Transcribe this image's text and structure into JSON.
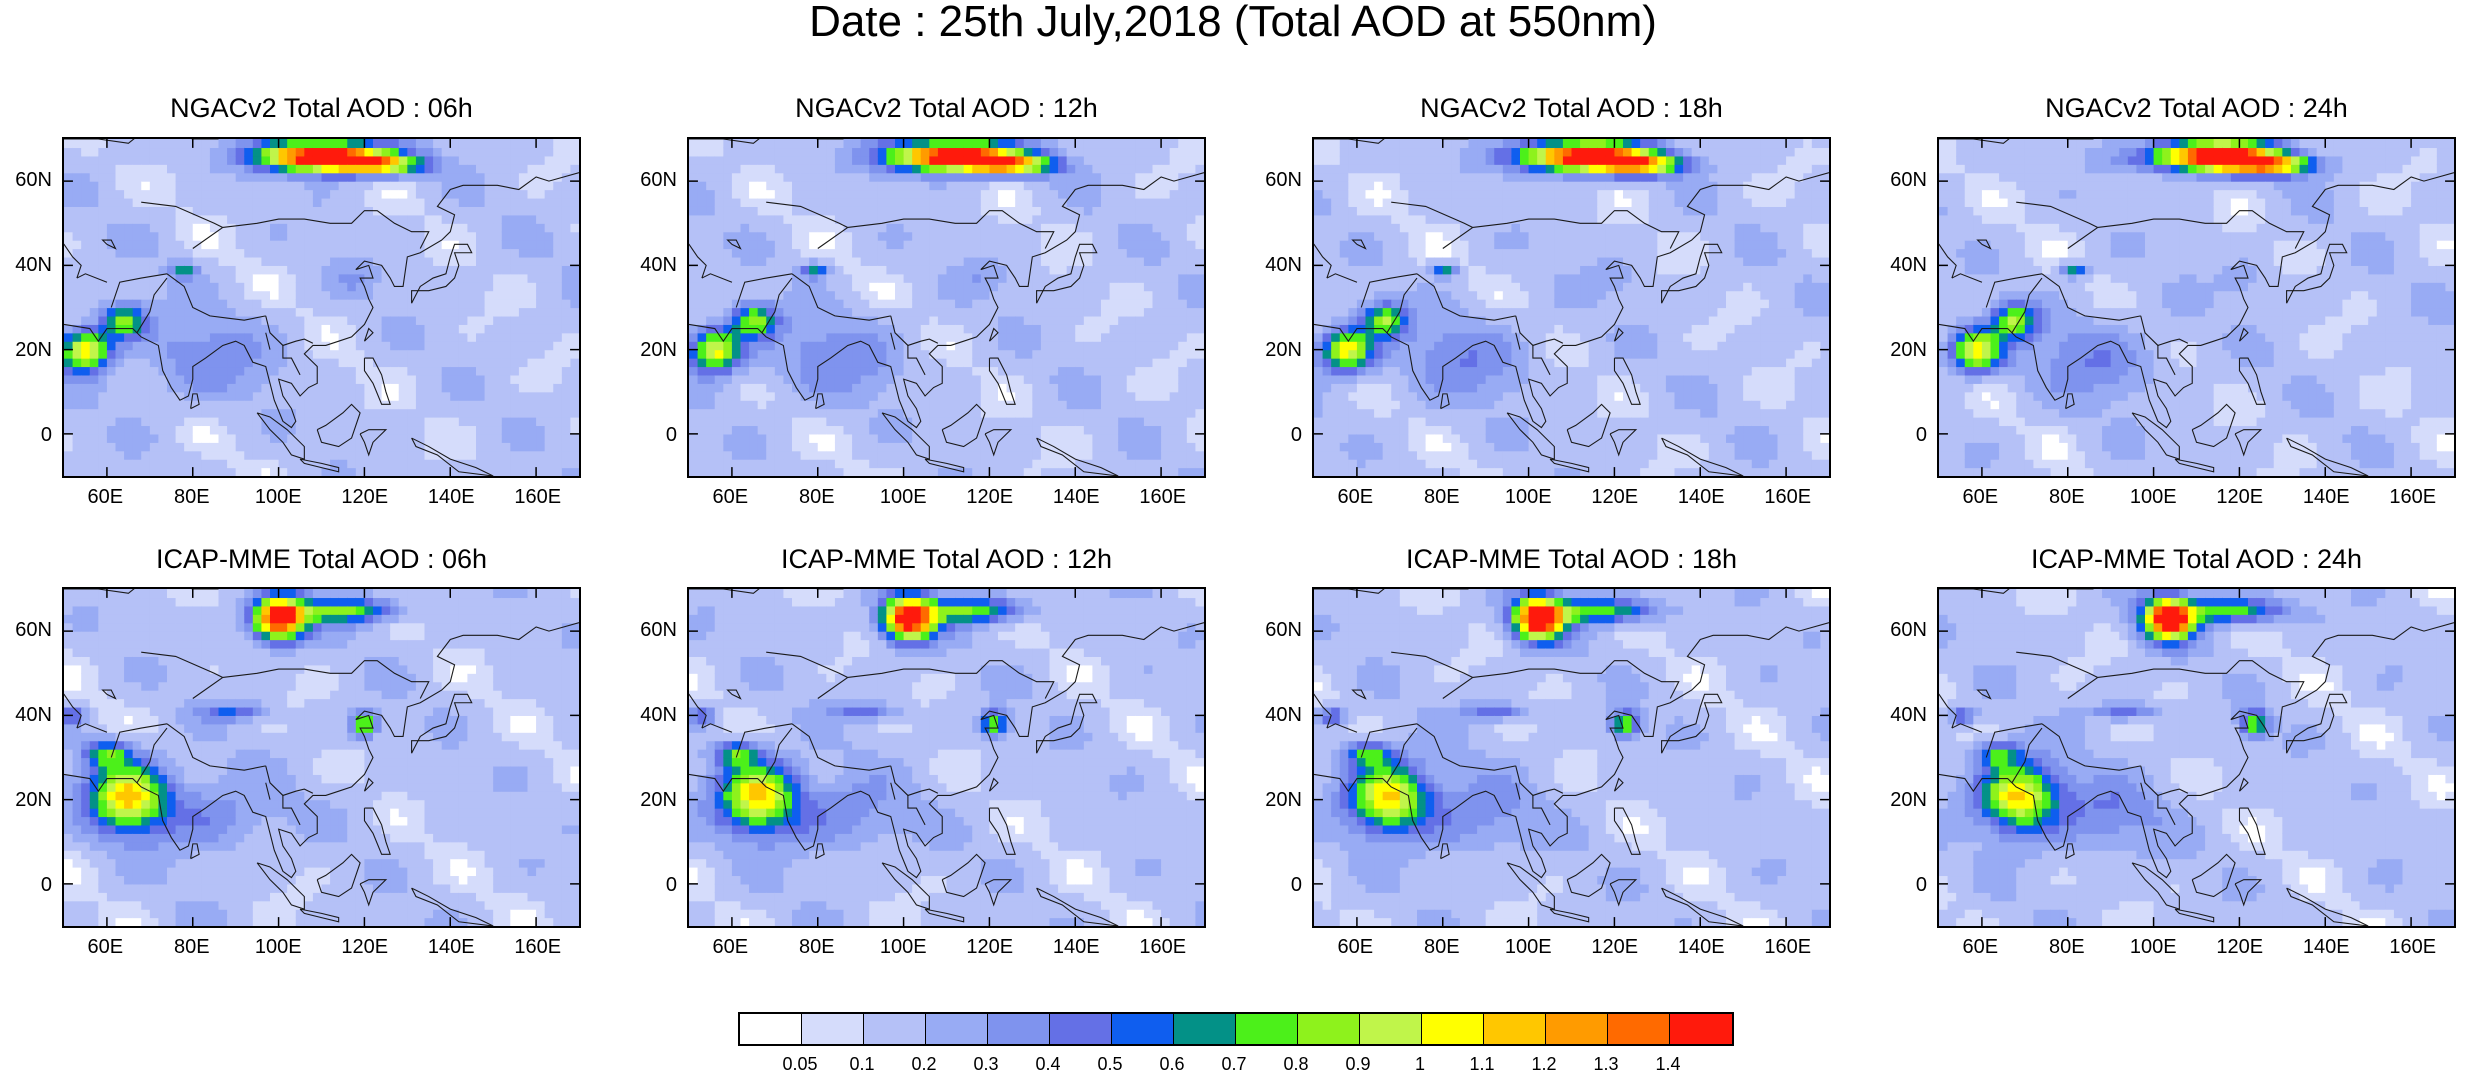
{
  "figure": {
    "title": "Date : 25th July,2018 (Total AOD at 550nm)"
  },
  "panels": [
    {
      "title": "NGACv2 Total AOD : 06h",
      "model": "NGACv2",
      "lead": "06h"
    },
    {
      "title": "NGACv2 Total AOD : 12h",
      "model": "NGACv2",
      "lead": "12h"
    },
    {
      "title": "NGACv2 Total AOD : 18h",
      "model": "NGACv2",
      "lead": "18h"
    },
    {
      "title": "NGACv2 Total AOD : 24h",
      "model": "NGACv2",
      "lead": "24h"
    },
    {
      "title": "ICAP-MME Total AOD : 06h",
      "model": "ICAP-MME",
      "lead": "06h"
    },
    {
      "title": "ICAP-MME Total AOD : 12h",
      "model": "ICAP-MME",
      "lead": "12h"
    },
    {
      "title": "ICAP-MME Total AOD : 18h",
      "model": "ICAP-MME",
      "lead": "18h"
    },
    {
      "title": "ICAP-MME Total AOD : 24h",
      "model": "ICAP-MME",
      "lead": "24h"
    }
  ],
  "axes": {
    "lat_ticks": [
      "60N",
      "40N",
      "20N",
      "0"
    ],
    "lon_ticks": [
      "60E",
      "80E",
      "100E",
      "120E",
      "140E",
      "160E"
    ]
  },
  "colorbar": {
    "levels": [
      "0.05",
      "0.1",
      "0.2",
      "0.3",
      "0.4",
      "0.5",
      "0.6",
      "0.7",
      "0.8",
      "0.9",
      "1",
      "1.1",
      "1.2",
      "1.3",
      "1.4"
    ],
    "colors": [
      "#ffffff",
      "#d5dcfb",
      "#b5c1f7",
      "#98abf4",
      "#7f93ee",
      "#6470e6",
      "#0f5eef",
      "#039187",
      "#4cf01a",
      "#8ef21c",
      "#c0f54a",
      "#ffff00",
      "#ffc700",
      "#ff9b00",
      "#ff6a00",
      "#ff1a0c"
    ]
  },
  "map_extent": {
    "lon_min": 50,
    "lon_max": 170,
    "lat_min": -10,
    "lat_max": 70
  }
}
